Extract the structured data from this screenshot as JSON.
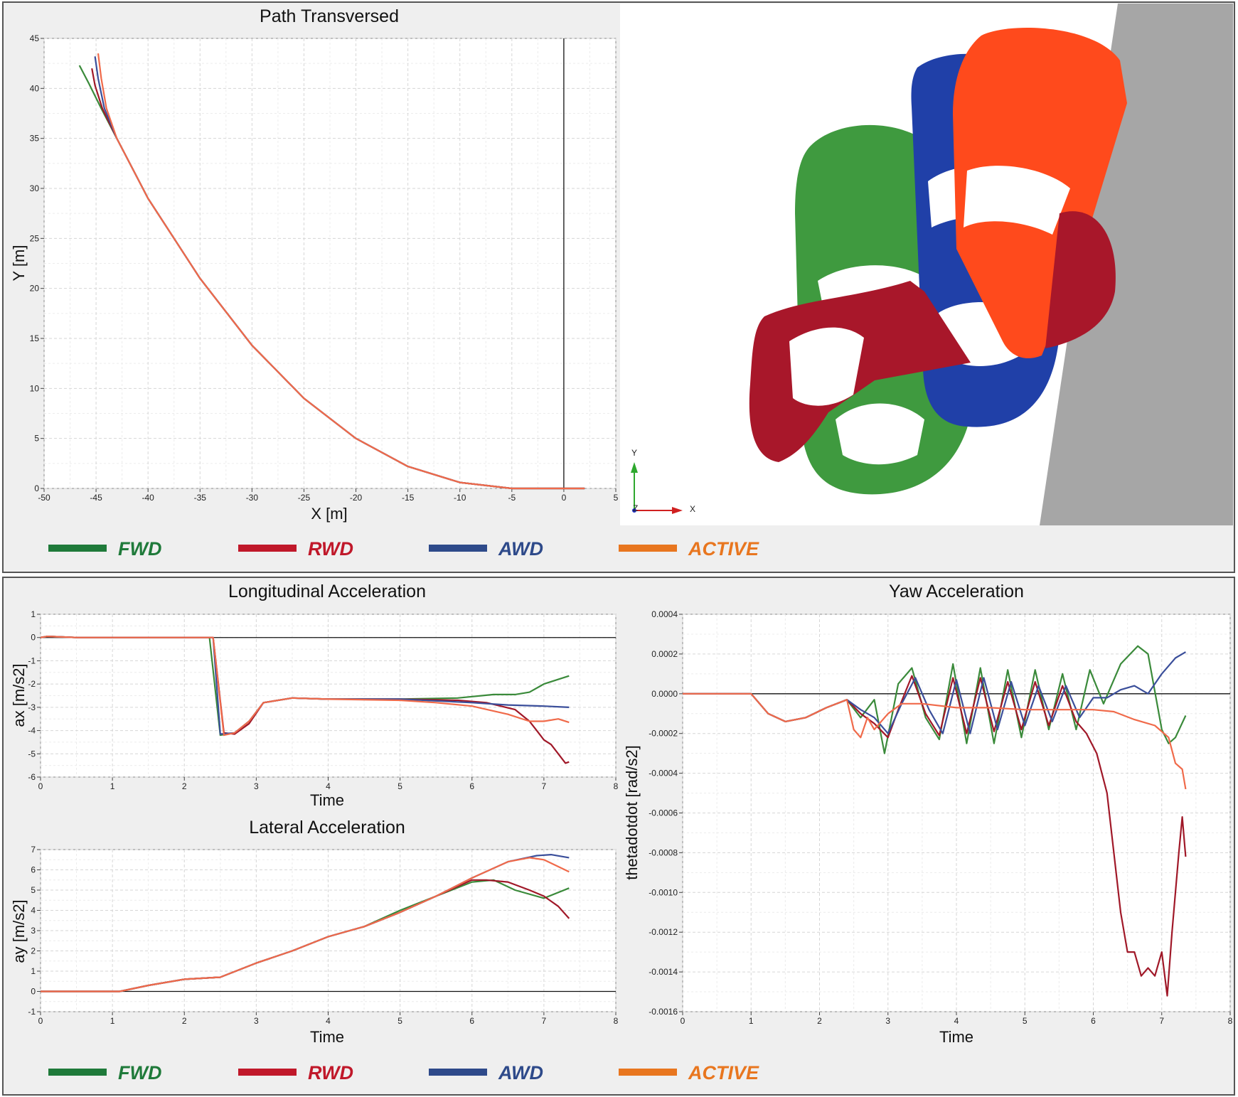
{
  "colors": {
    "FWD": "#3a8a3a",
    "RWD": "#a01828",
    "AWD": "#3a4e9a",
    "ACTIVE": "#f06a4a"
  },
  "legend": [
    {
      "key": "FWD",
      "label": "FWD",
      "color": "#1f7a3a"
    },
    {
      "key": "RWD",
      "label": "RWD",
      "color": "#c0182a"
    },
    {
      "key": "AWD",
      "label": "AWD",
      "color": "#2e4a8a"
    },
    {
      "key": "ACTIVE",
      "label": "ACTIVE",
      "color": "#e8761f"
    }
  ],
  "scene": {
    "icon": "vehicle-3d-render",
    "axis_y": "Y",
    "axis_z": "Z",
    "axis_x": "X",
    "car_colors": [
      "#3f9a3f",
      "#2040a8",
      "#ff4a1c",
      "#a8172a"
    ]
  },
  "chart_data": [
    {
      "id": "path",
      "type": "line",
      "title": "Path Transversed",
      "xlabel": "X [m]",
      "ylabel": "Y [m]",
      "xlim": [
        -50,
        5
      ],
      "ylim": [
        0,
        45
      ],
      "xticks": [
        -50,
        -45,
        -40,
        -35,
        -30,
        -25,
        -20,
        -15,
        -10,
        -5,
        0,
        5
      ],
      "yticks": [
        0,
        5,
        10,
        15,
        20,
        25,
        30,
        35,
        40,
        45
      ],
      "grid": true,
      "series": [
        {
          "key": "FWD",
          "x": [
            2,
            0,
            -5,
            -10,
            -15,
            -20,
            -25,
            -30,
            -35,
            -40,
            -43,
            -44.5,
            -45.7,
            -46.6
          ],
          "y": [
            0,
            0,
            0,
            0.6,
            2.2,
            5.0,
            9.0,
            14.3,
            21.0,
            29.0,
            35.0,
            38.0,
            40.5,
            42.3
          ]
        },
        {
          "key": "RWD",
          "x": [
            2,
            0,
            -5,
            -10,
            -15,
            -20,
            -25,
            -30,
            -35,
            -40,
            -43,
            -44.4,
            -45.1,
            -45.4
          ],
          "y": [
            0,
            0,
            0,
            0.6,
            2.2,
            5.0,
            9.0,
            14.3,
            21.0,
            29.0,
            35.0,
            38.0,
            40.3,
            42.0
          ]
        },
        {
          "key": "AWD",
          "x": [
            2,
            0,
            -5,
            -10,
            -15,
            -20,
            -25,
            -30,
            -35,
            -40,
            -43,
            -44.2,
            -44.8,
            -45.1
          ],
          "y": [
            0,
            0,
            0,
            0.6,
            2.2,
            5.0,
            9.0,
            14.3,
            21.0,
            29.0,
            35.0,
            38.0,
            41.0,
            43.2
          ]
        },
        {
          "key": "ACTIVE",
          "x": [
            2,
            0,
            -5,
            -10,
            -15,
            -20,
            -25,
            -30,
            -35,
            -40,
            -43,
            -44.0,
            -44.5,
            -44.8
          ],
          "y": [
            0,
            0,
            0,
            0.6,
            2.2,
            5.0,
            9.0,
            14.3,
            21.0,
            29.0,
            35.0,
            38.0,
            41.0,
            43.5
          ]
        }
      ]
    },
    {
      "id": "long",
      "type": "line",
      "title": "Longitudinal Acceleration",
      "xlabel": "Time",
      "ylabel": "ax [m/s2]",
      "xlim": [
        0,
        8
      ],
      "ylim": [
        -6,
        1
      ],
      "xticks": [
        0,
        1,
        2,
        3,
        4,
        5,
        6,
        7,
        8
      ],
      "yticks": [
        -6,
        -5,
        -4,
        -3,
        -2,
        -1,
        0,
        1
      ],
      "grid": true,
      "series": [
        {
          "key": "FWD",
          "x": [
            0,
            0.1,
            0.5,
            1,
            2,
            2.35,
            2.5,
            2.7,
            2.9,
            3.1,
            3.5,
            4,
            5,
            5.8,
            6.3,
            6.6,
            6.8,
            7.0,
            7.2,
            7.35
          ],
          "y": [
            0,
            0.05,
            0,
            0,
            0,
            0,
            -4.2,
            -4.1,
            -3.6,
            -2.8,
            -2.6,
            -2.65,
            -2.65,
            -2.6,
            -2.45,
            -2.45,
            -2.35,
            -2.0,
            -1.8,
            -1.65
          ]
        },
        {
          "key": "RWD",
          "x": [
            0,
            0.1,
            0.5,
            1,
            2,
            2.4,
            2.55,
            2.7,
            2.9,
            3.1,
            3.5,
            4,
            5,
            5.8,
            6.2,
            6.6,
            6.8,
            6.9,
            7.0,
            7.1,
            7.2,
            7.3,
            7.35
          ],
          "y": [
            0,
            0.05,
            0,
            0,
            0,
            0,
            -4.1,
            -4.15,
            -3.7,
            -2.8,
            -2.6,
            -2.65,
            -2.65,
            -2.7,
            -2.8,
            -3.1,
            -3.6,
            -4.0,
            -4.4,
            -4.6,
            -5.0,
            -5.4,
            -5.35
          ]
        },
        {
          "key": "AWD",
          "x": [
            0,
            0.1,
            0.5,
            1,
            2,
            2.4,
            2.5,
            2.7,
            2.9,
            3.1,
            3.5,
            4,
            5,
            6,
            6.5,
            7.0,
            7.35
          ],
          "y": [
            0,
            0.05,
            0,
            0,
            0,
            0,
            -4.15,
            -4.1,
            -3.6,
            -2.8,
            -2.6,
            -2.65,
            -2.65,
            -2.8,
            -2.9,
            -2.95,
            -3.0
          ]
        },
        {
          "key": "ACTIVE",
          "x": [
            0,
            0.1,
            0.5,
            1,
            2,
            2.4,
            2.55,
            2.7,
            2.9,
            3.1,
            3.5,
            4,
            5,
            5.5,
            6,
            6.5,
            6.8,
            7.0,
            7.2,
            7.35
          ],
          "y": [
            0,
            0.05,
            0,
            0,
            0,
            0,
            -4.2,
            -4.1,
            -3.6,
            -2.8,
            -2.6,
            -2.65,
            -2.7,
            -2.8,
            -2.95,
            -3.3,
            -3.6,
            -3.6,
            -3.5,
            -3.65
          ]
        }
      ]
    },
    {
      "id": "lat",
      "type": "line",
      "title": "Lateral Acceleration",
      "xlabel": "Time",
      "ylabel": "ay [m/s2]",
      "xlim": [
        0,
        8
      ],
      "ylim": [
        -1,
        7
      ],
      "xticks": [
        0,
        1,
        2,
        3,
        4,
        5,
        6,
        7,
        8
      ],
      "yticks": [
        -1,
        0,
        1,
        2,
        3,
        4,
        5,
        6,
        7
      ],
      "grid": true,
      "series": [
        {
          "key": "FWD",
          "x": [
            0,
            1,
            1.1,
            1.5,
            2,
            2.5,
            3,
            3.5,
            4,
            4.5,
            5,
            5.5,
            6,
            6.3,
            6.6,
            7.0,
            7.35
          ],
          "y": [
            0,
            0,
            0,
            0.3,
            0.6,
            0.7,
            1.4,
            2.0,
            2.7,
            3.2,
            4.0,
            4.7,
            5.4,
            5.5,
            5.0,
            4.6,
            5.1
          ]
        },
        {
          "key": "RWD",
          "x": [
            0,
            1,
            1.1,
            1.5,
            2,
            2.5,
            3,
            3.5,
            4,
            4.5,
            5,
            5.5,
            6,
            6.2,
            6.5,
            6.8,
            7.0,
            7.2,
            7.35
          ],
          "y": [
            0,
            0,
            0,
            0.3,
            0.6,
            0.7,
            1.4,
            2.0,
            2.7,
            3.2,
            3.9,
            4.7,
            5.5,
            5.5,
            5.4,
            5.0,
            4.7,
            4.2,
            3.6
          ]
        },
        {
          "key": "AWD",
          "x": [
            0,
            1,
            1.1,
            1.5,
            2,
            2.5,
            3,
            3.5,
            4,
            4.5,
            5,
            5.5,
            6,
            6.5,
            6.9,
            7.1,
            7.35
          ],
          "y": [
            0,
            0,
            0,
            0.3,
            0.6,
            0.7,
            1.4,
            2.0,
            2.7,
            3.2,
            3.9,
            4.7,
            5.6,
            6.4,
            6.7,
            6.75,
            6.6
          ]
        },
        {
          "key": "ACTIVE",
          "x": [
            0,
            1,
            1.1,
            1.5,
            2,
            2.5,
            3,
            3.5,
            4,
            4.5,
            5,
            5.5,
            6,
            6.5,
            6.8,
            7.0,
            7.35
          ],
          "y": [
            0,
            0,
            0,
            0.3,
            0.6,
            0.7,
            1.4,
            2.0,
            2.7,
            3.2,
            3.9,
            4.7,
            5.6,
            6.4,
            6.6,
            6.5,
            5.9
          ]
        }
      ]
    },
    {
      "id": "yaw",
      "type": "line",
      "title": "Yaw Acceleration",
      "xlabel": "Time",
      "ylabel": "thetadotdot [rad/s2]",
      "xlim": [
        0,
        8
      ],
      "ylim": [
        -0.0016,
        0.0004
      ],
      "xticks": [
        0,
        1,
        2,
        3,
        4,
        5,
        6,
        7,
        8
      ],
      "yticks": [
        -0.0016,
        -0.0014,
        -0.0012,
        -0.001,
        -0.0008,
        -0.0006,
        -0.0004,
        -0.0002,
        0,
        0.0002,
        0.0004
      ],
      "ytick_labels": [
        "-0.0016",
        "-0.0014",
        "-0.0012",
        "-0.0010",
        "-0.0008",
        "-0.0006",
        "-0.0004",
        "-0.0002",
        "0.0000",
        "0.0002",
        "0.0004"
      ],
      "grid": true,
      "series": [
        {
          "key": "FWD",
          "x": [
            0,
            0.5,
            1,
            1.25,
            1.5,
            1.8,
            2.1,
            2.4,
            2.6,
            2.8,
            2.95,
            3.15,
            3.35,
            3.55,
            3.75,
            3.95,
            4.15,
            4.35,
            4.55,
            4.75,
            4.95,
            5.15,
            5.35,
            5.55,
            5.75,
            5.95,
            6.15,
            6.4,
            6.65,
            6.8,
            7.0,
            7.1,
            7.2,
            7.35
          ],
          "y": [
            0,
            0,
            0,
            -0.0001,
            -0.00014,
            -0.00012,
            -7e-05,
            -3e-05,
            -0.00012,
            -3e-05,
            -0.0003,
            5e-05,
            0.00013,
            -0.00012,
            -0.00023,
            0.00015,
            -0.00025,
            0.00013,
            -0.00025,
            0.00012,
            -0.00022,
            0.00012,
            -0.00018,
            0.0001,
            -0.00018,
            0.00012,
            -5e-05,
            0.00015,
            0.00024,
            0.0002,
            -0.00018,
            -0.00025,
            -0.00022,
            -0.00011
          ]
        },
        {
          "key": "RWD",
          "x": [
            0,
            0.5,
            1,
            1.25,
            1.5,
            1.8,
            2.1,
            2.4,
            2.6,
            2.8,
            3.0,
            3.15,
            3.35,
            3.55,
            3.75,
            3.95,
            4.15,
            4.35,
            4.55,
            4.75,
            4.95,
            5.15,
            5.35,
            5.55,
            5.75,
            5.9,
            6.05,
            6.2,
            6.3,
            6.4,
            6.5,
            6.6,
            6.7,
            6.8,
            6.9,
            7.0,
            7.08,
            7.15,
            7.25,
            7.3,
            7.35
          ],
          "y": [
            0,
            0,
            0,
            -0.0001,
            -0.00014,
            -0.00012,
            -7e-05,
            -3e-05,
            -0.0001,
            -0.00015,
            -0.00022,
            -8e-05,
            9e-05,
            -0.0001,
            -0.00021,
            8e-05,
            -0.0002,
            8e-05,
            -0.00019,
            6e-05,
            -0.00018,
            6e-05,
            -0.00016,
            4e-05,
            -0.00014,
            -0.0002,
            -0.0003,
            -0.0005,
            -0.0008,
            -0.0011,
            -0.0013,
            -0.0013,
            -0.00142,
            -0.00138,
            -0.00142,
            -0.0013,
            -0.00152,
            -0.0012,
            -0.0008,
            -0.00062,
            -0.00082
          ]
        },
        {
          "key": "AWD",
          "x": [
            0,
            0.5,
            1,
            1.25,
            1.5,
            1.8,
            2.1,
            2.4,
            2.6,
            2.8,
            3.0,
            3.2,
            3.4,
            3.6,
            3.8,
            4.0,
            4.2,
            4.4,
            4.6,
            4.8,
            5.0,
            5.2,
            5.4,
            5.6,
            5.8,
            6.0,
            6.2,
            6.4,
            6.6,
            6.8,
            7.0,
            7.2,
            7.35
          ],
          "y": [
            0,
            0,
            0,
            -0.0001,
            -0.00014,
            -0.00012,
            -7e-05,
            -3e-05,
            -8e-05,
            -0.00012,
            -0.0002,
            -5e-05,
            8e-05,
            -8e-05,
            -0.0002,
            7e-05,
            -0.0002,
            8e-05,
            -0.00018,
            6e-05,
            -0.00016,
            4e-05,
            -0.00014,
            4e-05,
            -0.00012,
            -2e-05,
            -2e-05,
            2e-05,
            4e-05,
            0.0,
            0.0001,
            0.00018,
            0.00021
          ]
        },
        {
          "key": "ACTIVE",
          "x": [
            0,
            0.5,
            1,
            1.25,
            1.5,
            1.8,
            2.1,
            2.4,
            2.5,
            2.6,
            2.7,
            2.8,
            3.0,
            3.2,
            3.5,
            4.0,
            4.5,
            5.0,
            5.5,
            6.0,
            6.3,
            6.6,
            6.9,
            7.1,
            7.2,
            7.3,
            7.35
          ],
          "y": [
            0,
            0,
            0,
            -0.0001,
            -0.00014,
            -0.00012,
            -7e-05,
            -3e-05,
            -0.00018,
            -0.00022,
            -0.00012,
            -0.00018,
            -0.0001,
            -5e-05,
            -5e-05,
            -7e-05,
            -7e-05,
            -8e-05,
            -8e-05,
            -8e-05,
            -9e-05,
            -0.00013,
            -0.00016,
            -0.00022,
            -0.00035,
            -0.00038,
            -0.00048
          ]
        }
      ]
    }
  ]
}
